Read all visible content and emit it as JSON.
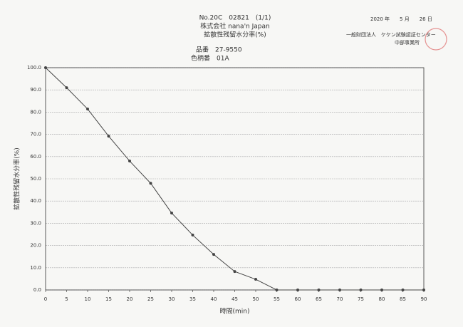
{
  "header": {
    "report_no": "No.20C　02821　(1/1)",
    "client": "株式会社 nana'n Japan",
    "test": "拡散性残留水分率(%)",
    "date": "2020 年　　5 月　　26 日",
    "issuer": "一般財団法人　ケケン試験認証センター",
    "office": "中部事業所",
    "item_no": "品番　27-9550",
    "color_no": "色柄番　01A"
  },
  "chart_data": {
    "type": "line",
    "x_label": "時間(min)",
    "y_label": "拡散性残留水分率(%)",
    "series": [
      {
        "color": "#444444",
        "x": [
          0,
          5,
          10,
          15,
          20,
          25,
          30,
          35,
          40,
          45,
          50,
          55,
          60,
          65,
          70,
          75,
          80,
          85,
          90
        ],
        "values": [
          100,
          91,
          81.4,
          69.2,
          58,
          48,
          34.6,
          24.7,
          16,
          8.3,
          4.8,
          0,
          0,
          0,
          0,
          0,
          0,
          0,
          0
        ]
      }
    ],
    "xlim": [
      0,
      90
    ],
    "xticks": [
      0,
      5,
      10,
      15,
      20,
      25,
      30,
      35,
      40,
      45,
      50,
      55,
      60,
      65,
      70,
      75,
      80,
      85,
      90
    ],
    "ylim": [
      0,
      100
    ],
    "yticks": [
      {
        "value": 0,
        "label": "0.0"
      },
      {
        "value": 10,
        "label": "10.0"
      },
      {
        "value": 20,
        "label": "20.0"
      },
      {
        "value": 30,
        "label": "30.0"
      },
      {
        "value": 40,
        "label": "40.0"
      },
      {
        "value": 50,
        "label": "50.0"
      },
      {
        "value": 60,
        "label": "60.0"
      },
      {
        "value": 70,
        "label": "70.0"
      },
      {
        "value": 80,
        "label": "80.0"
      },
      {
        "value": 90,
        "label": "90.0"
      },
      {
        "value": 100,
        "label": "100.0"
      }
    ],
    "grid": true
  }
}
